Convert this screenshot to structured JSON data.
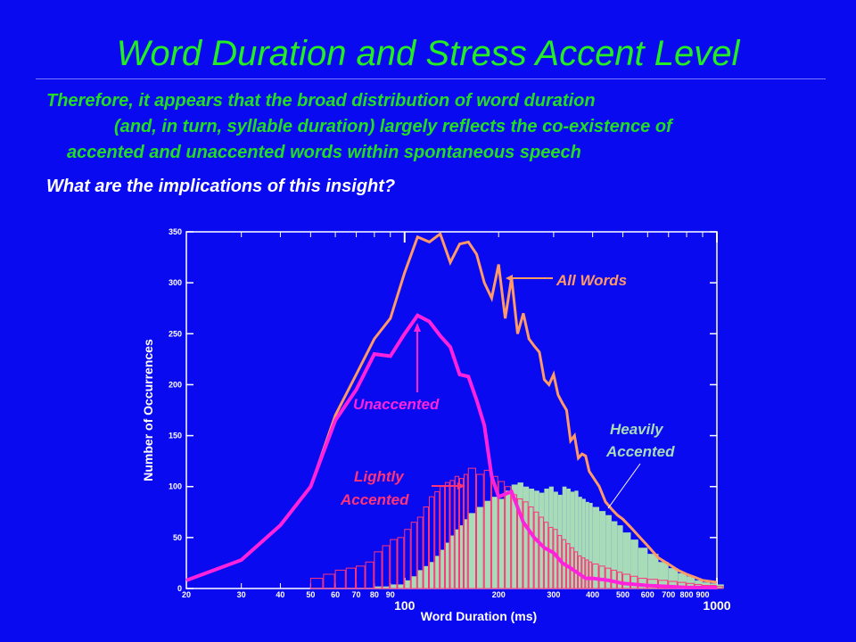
{
  "slide": {
    "title": "Word Duration and Stress Accent Level",
    "lines": [
      "Therefore, it appears that the broad distribution of word duration",
      "(and, in turn, syllable duration) largely reflects the co-existence of",
      "accented and unaccented words within spontaneous speech"
    ],
    "question": "What are the implications of this insight?"
  },
  "colors": {
    "background": "#0a0af0",
    "title": "#22ee22",
    "all_words": "#ff9966",
    "unaccented": "#ff22dd",
    "lightly_accented": "#ff3377",
    "heavily_accented": "#a8dcb8"
  },
  "chart_data": {
    "type": "line",
    "xscale": "log",
    "xlim": [
      20,
      1000
    ],
    "ylim": [
      0,
      350
    ],
    "xlabel": "Word Duration (ms)",
    "ylabel": "Number of Occurrences",
    "x_ticks": [
      20,
      30,
      40,
      50,
      60,
      70,
      80,
      90,
      200,
      300,
      400,
      500,
      600,
      700,
      800,
      900
    ],
    "x_major_ticks": [
      100,
      1000
    ],
    "y_ticks": [
      0,
      50,
      100,
      150,
      200,
      250,
      300,
      350
    ],
    "annotations": {
      "all_words": "All Words",
      "unaccented": "Unaccented",
      "heavily_line1": "Heavily",
      "heavily_line2": "Accented",
      "lightly_line1": "Lightly",
      "lightly_line2": "Accented"
    },
    "series": [
      {
        "name": "All Words",
        "style": "line",
        "points": [
          [
            20,
            8
          ],
          [
            30,
            28
          ],
          [
            40,
            62
          ],
          [
            50,
            100
          ],
          [
            60,
            170
          ],
          [
            70,
            210
          ],
          [
            80,
            245
          ],
          [
            90,
            265
          ],
          [
            100,
            310
          ],
          [
            110,
            345
          ],
          [
            120,
            340
          ],
          [
            130,
            348
          ],
          [
            140,
            320
          ],
          [
            150,
            338
          ],
          [
            160,
            340
          ],
          [
            170,
            328
          ],
          [
            180,
            300
          ],
          [
            190,
            285
          ],
          [
            200,
            318
          ],
          [
            210,
            265
          ],
          [
            220,
            305
          ],
          [
            230,
            250
          ],
          [
            240,
            270
          ],
          [
            250,
            245
          ],
          [
            260,
            238
          ],
          [
            270,
            232
          ],
          [
            280,
            205
          ],
          [
            290,
            200
          ],
          [
            300,
            210
          ],
          [
            310,
            190
          ],
          [
            320,
            182
          ],
          [
            330,
            175
          ],
          [
            340,
            145
          ],
          [
            350,
            150
          ],
          [
            360,
            128
          ],
          [
            370,
            132
          ],
          [
            380,
            130
          ],
          [
            390,
            115
          ],
          [
            400,
            110
          ],
          [
            420,
            100
          ],
          [
            440,
            85
          ],
          [
            460,
            78
          ],
          [
            480,
            72
          ],
          [
            500,
            68
          ],
          [
            530,
            60
          ],
          [
            560,
            52
          ],
          [
            600,
            42
          ],
          [
            650,
            30
          ],
          [
            700,
            24
          ],
          [
            750,
            18
          ],
          [
            800,
            14
          ],
          [
            850,
            11
          ],
          [
            900,
            8
          ],
          [
            950,
            7
          ],
          [
            1000,
            6
          ]
        ]
      },
      {
        "name": "Unaccented",
        "style": "line",
        "points": [
          [
            20,
            8
          ],
          [
            30,
            28
          ],
          [
            40,
            62
          ],
          [
            50,
            100
          ],
          [
            60,
            165
          ],
          [
            70,
            195
          ],
          [
            80,
            230
          ],
          [
            90,
            228
          ],
          [
            100,
            250
          ],
          [
            110,
            268
          ],
          [
            120,
            262
          ],
          [
            130,
            248
          ],
          [
            140,
            237
          ],
          [
            150,
            210
          ],
          [
            160,
            208
          ],
          [
            170,
            185
          ],
          [
            180,
            160
          ],
          [
            190,
            110
          ],
          [
            200,
            90
          ],
          [
            220,
            95
          ],
          [
            240,
            65
          ],
          [
            260,
            50
          ],
          [
            280,
            40
          ],
          [
            300,
            35
          ],
          [
            320,
            25
          ],
          [
            340,
            20
          ],
          [
            360,
            15
          ],
          [
            380,
            10
          ],
          [
            400,
            10
          ],
          [
            450,
            8
          ],
          [
            500,
            5
          ],
          [
            600,
            3
          ],
          [
            700,
            2
          ],
          [
            800,
            1
          ],
          [
            1000,
            1
          ]
        ]
      },
      {
        "name": "Heavily Accented",
        "style": "bars",
        "points": [
          [
            80,
            2
          ],
          [
            90,
            4
          ],
          [
            100,
            8
          ],
          [
            105,
            12
          ],
          [
            110,
            18
          ],
          [
            115,
            22
          ],
          [
            120,
            26
          ],
          [
            125,
            32
          ],
          [
            130,
            38
          ],
          [
            135,
            45
          ],
          [
            140,
            52
          ],
          [
            145,
            58
          ],
          [
            150,
            62
          ],
          [
            155,
            68
          ],
          [
            160,
            74
          ],
          [
            170,
            80
          ],
          [
            180,
            86
          ],
          [
            190,
            90
          ],
          [
            200,
            88
          ],
          [
            210,
            96
          ],
          [
            220,
            102
          ],
          [
            230,
            104
          ],
          [
            240,
            100
          ],
          [
            250,
            98
          ],
          [
            260,
            96
          ],
          [
            270,
            94
          ],
          [
            280,
            98
          ],
          [
            290,
            100
          ],
          [
            300,
            95
          ],
          [
            310,
            92
          ],
          [
            320,
            100
          ],
          [
            330,
            98
          ],
          [
            340,
            95
          ],
          [
            350,
            96
          ],
          [
            360,
            90
          ],
          [
            370,
            88
          ],
          [
            380,
            85
          ],
          [
            390,
            84
          ],
          [
            400,
            80
          ],
          [
            420,
            76
          ],
          [
            440,
            72
          ],
          [
            460,
            66
          ],
          [
            480,
            62
          ],
          [
            500,
            55
          ],
          [
            530,
            48
          ],
          [
            560,
            40
          ],
          [
            600,
            34
          ],
          [
            650,
            26
          ],
          [
            700,
            20
          ],
          [
            750,
            15
          ],
          [
            800,
            12
          ],
          [
            850,
            8
          ],
          [
            900,
            6
          ],
          [
            950,
            5
          ],
          [
            1000,
            4
          ]
        ]
      },
      {
        "name": "Lightly Accented",
        "style": "outline-bars",
        "points": [
          [
            50,
            10
          ],
          [
            55,
            14
          ],
          [
            60,
            18
          ],
          [
            65,
            20
          ],
          [
            70,
            22
          ],
          [
            75,
            26
          ],
          [
            80,
            36
          ],
          [
            85,
            42
          ],
          [
            90,
            48
          ],
          [
            95,
            50
          ],
          [
            100,
            58
          ],
          [
            105,
            65
          ],
          [
            110,
            70
          ],
          [
            115,
            80
          ],
          [
            120,
            90
          ],
          [
            125,
            95
          ],
          [
            130,
            100
          ],
          [
            135,
            104
          ],
          [
            140,
            106
          ],
          [
            145,
            110
          ],
          [
            150,
            108
          ],
          [
            155,
            112
          ],
          [
            160,
            118
          ],
          [
            170,
            112
          ],
          [
            180,
            116
          ],
          [
            190,
            110
          ],
          [
            200,
            105
          ],
          [
            210,
            100
          ],
          [
            220,
            92
          ],
          [
            230,
            88
          ],
          [
            240,
            85
          ],
          [
            250,
            80
          ],
          [
            260,
            75
          ],
          [
            270,
            70
          ],
          [
            280,
            65
          ],
          [
            290,
            60
          ],
          [
            300,
            58
          ],
          [
            310,
            52
          ],
          [
            320,
            48
          ],
          [
            330,
            44
          ],
          [
            340,
            40
          ],
          [
            350,
            36
          ],
          [
            360,
            32
          ],
          [
            370,
            30
          ],
          [
            380,
            28
          ],
          [
            390,
            26
          ],
          [
            400,
            24
          ],
          [
            420,
            22
          ],
          [
            440,
            20
          ],
          [
            460,
            18
          ],
          [
            480,
            16
          ],
          [
            500,
            14
          ],
          [
            530,
            12
          ],
          [
            560,
            10
          ],
          [
            600,
            9
          ],
          [
            650,
            8
          ],
          [
            700,
            7
          ],
          [
            750,
            6
          ],
          [
            800,
            5
          ],
          [
            850,
            4
          ],
          [
            900,
            3
          ],
          [
            950,
            3
          ],
          [
            1000,
            2
          ]
        ]
      }
    ]
  }
}
